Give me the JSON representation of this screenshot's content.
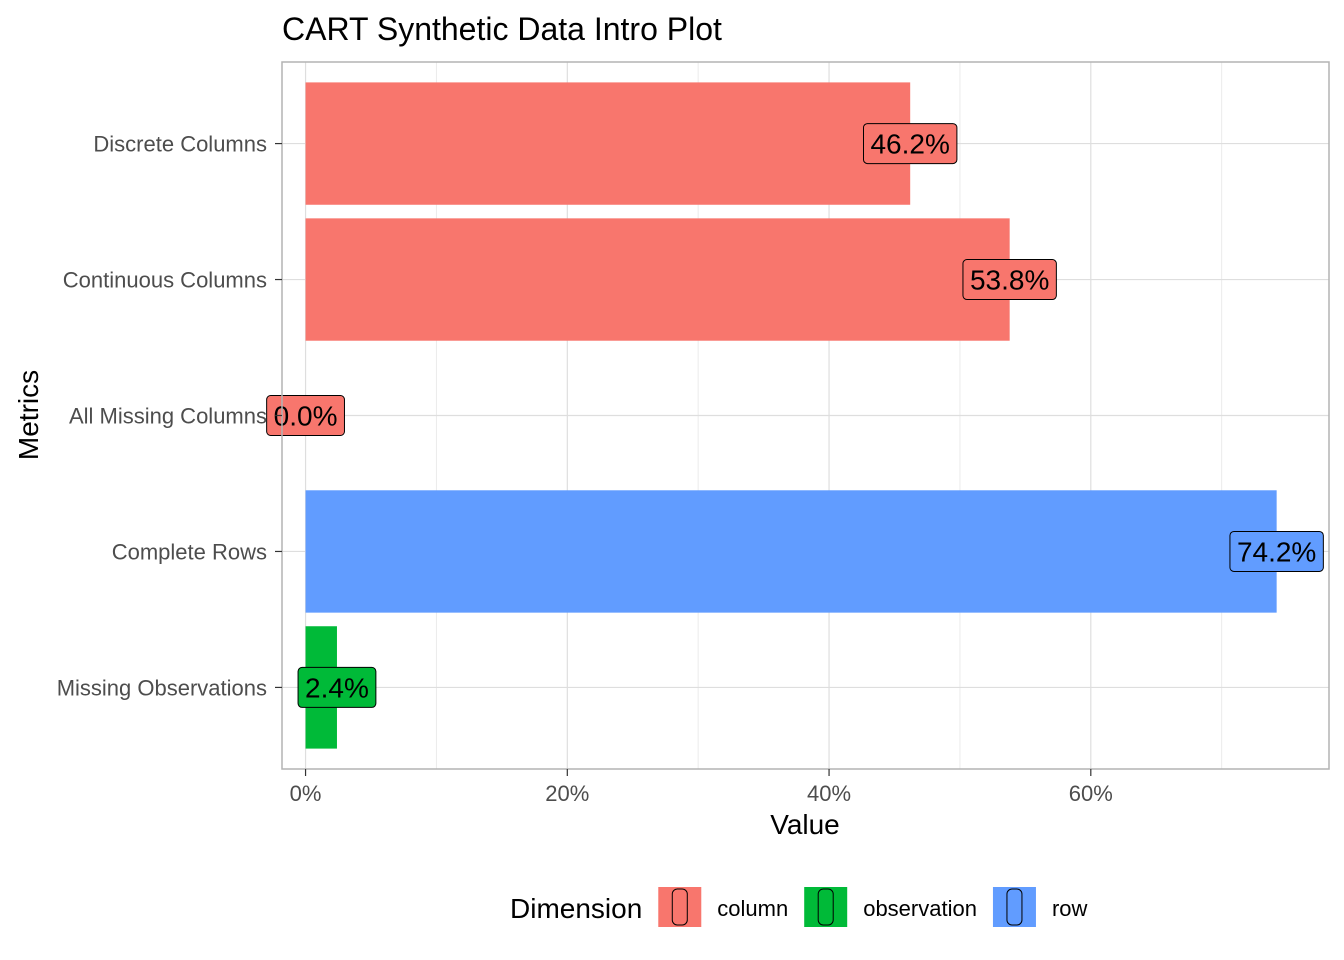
{
  "chart_data": {
    "type": "bar",
    "orientation": "horizontal",
    "title": "CART Synthetic Data Intro Plot",
    "xlabel": "Value",
    "ylabel": "Metrics",
    "xlim": [
      -1.8,
      78.2
    ],
    "xticks": [
      0,
      20,
      40,
      60
    ],
    "xtick_labels": [
      "0%",
      "20%",
      "40%",
      "60%"
    ],
    "grid": true,
    "categories": [
      "Discrete Columns",
      "Continuous Columns",
      "All Missing Columns",
      "Complete Rows",
      "Missing Observations"
    ],
    "values": [
      46.2,
      53.8,
      0.0,
      74.2,
      2.4
    ],
    "labels": [
      "46.2%",
      "53.8%",
      "0.0%",
      "74.2%",
      "2.4%"
    ],
    "dimension": [
      "column",
      "column",
      "column",
      "row",
      "observation"
    ],
    "legend": {
      "title": "Dimension",
      "position": "bottom",
      "entries": [
        {
          "name": "column",
          "color": "#F8766D"
        },
        {
          "name": "observation",
          "color": "#00BA38"
        },
        {
          "name": "row",
          "color": "#619CFF"
        }
      ]
    }
  }
}
